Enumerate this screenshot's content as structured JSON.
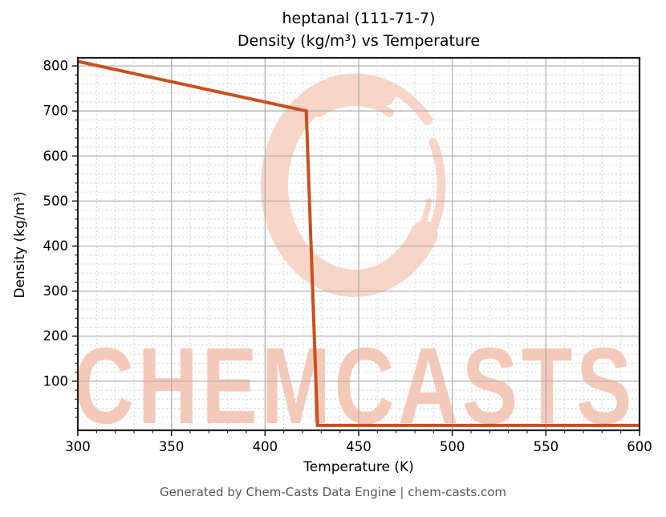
{
  "title": {
    "line1": "heptanal (111-71-7)",
    "line2": "Density (kg/m³) vs Temperature"
  },
  "watermark": {
    "text": "CHEMCASTS",
    "text_color": "#f6c8b7",
    "logo_color": "#f9d5c8"
  },
  "footer": {
    "text": "Generated by Chem-Casts Data Engine | chem-casts.com"
  },
  "chart_data": {
    "type": "line",
    "title": "heptanal (111-71-7) — Density (kg/m³) vs Temperature",
    "xlabel": "Temperature (K)",
    "ylabel": "Density (kg/m³)",
    "xlim": [
      300,
      600
    ],
    "ylim": [
      -9,
      818
    ],
    "x_ticks": [
      300,
      350,
      400,
      450,
      500,
      550,
      600
    ],
    "y_ticks": [
      100,
      200,
      300,
      400,
      500,
      600,
      700,
      800
    ],
    "x_minor_step": 10,
    "y_minor_step": 20,
    "grid": true,
    "legend": false,
    "line_color": "#cd4e1c",
    "line_width": 4,
    "grid_major_color": "#b2b2b2",
    "grid_minor_color": "#d6d6d6",
    "series": [
      {
        "name": "Density (kg/m³)",
        "points": [
          [
            300,
            810
          ],
          [
            422,
            700
          ],
          [
            428,
            2
          ],
          [
            600,
            2
          ]
        ]
      }
    ]
  }
}
